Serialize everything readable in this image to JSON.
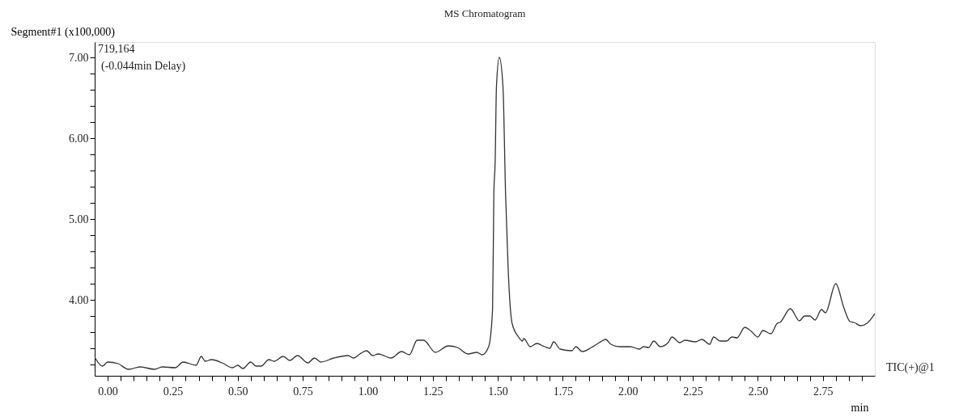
{
  "chart_data": {
    "type": "line",
    "title": "MS Chromatogram",
    "xlabel": "min",
    "ylabel": "Segment#1 (x100,000)",
    "annotations": [
      "719,164",
      "(-0.044min Delay)"
    ],
    "xlim": [
      -0.05,
      2.95
    ],
    "ylim": [
      3.06,
      7.19
    ],
    "xticks": [
      {
        "value": 0,
        "label": "0.00"
      },
      {
        "value": 0.05,
        "label": null
      },
      {
        "value": 0.1,
        "label": null
      },
      {
        "value": 0.15,
        "label": null
      },
      {
        "value": 0.2,
        "label": null
      },
      {
        "value": 0.25,
        "label": "0.25"
      },
      {
        "value": 0.3,
        "label": null
      },
      {
        "value": 0.35,
        "label": null
      },
      {
        "value": 0.4,
        "label": null
      },
      {
        "value": 0.45,
        "label": null
      },
      {
        "value": 0.5,
        "label": "0.50"
      },
      {
        "value": 0.55,
        "label": null
      },
      {
        "value": 0.6,
        "label": null
      },
      {
        "value": 0.65,
        "label": null
      },
      {
        "value": 0.7,
        "label": null
      },
      {
        "value": 0.75,
        "label": "0.75"
      },
      {
        "value": 0.8,
        "label": null
      },
      {
        "value": 0.85,
        "label": null
      },
      {
        "value": 0.9,
        "label": null
      },
      {
        "value": 0.95,
        "label": null
      },
      {
        "value": 1.0,
        "label": "1.00"
      },
      {
        "value": 1.05,
        "label": null
      },
      {
        "value": 1.1,
        "label": null
      },
      {
        "value": 1.15,
        "label": null
      },
      {
        "value": 1.2,
        "label": null
      },
      {
        "value": 1.25,
        "label": "1.25"
      },
      {
        "value": 1.3,
        "label": null
      },
      {
        "value": 1.35,
        "label": null
      },
      {
        "value": 1.4,
        "label": null
      },
      {
        "value": 1.45,
        "label": null
      },
      {
        "value": 1.5,
        "label": "1.50"
      },
      {
        "value": 1.55,
        "label": null
      },
      {
        "value": 1.6,
        "label": null
      },
      {
        "value": 1.65,
        "label": null
      },
      {
        "value": 1.7,
        "label": null
      },
      {
        "value": 1.75,
        "label": "1.75"
      },
      {
        "value": 1.8,
        "label": null
      },
      {
        "value": 1.85,
        "label": null
      },
      {
        "value": 1.9,
        "label": null
      },
      {
        "value": 1.95,
        "label": null
      },
      {
        "value": 2.0,
        "label": "2.00"
      },
      {
        "value": 2.05,
        "label": null
      },
      {
        "value": 2.1,
        "label": null
      },
      {
        "value": 2.15,
        "label": null
      },
      {
        "value": 2.2,
        "label": null
      },
      {
        "value": 2.25,
        "label": "2.25"
      },
      {
        "value": 2.3,
        "label": null
      },
      {
        "value": 2.35,
        "label": null
      },
      {
        "value": 2.4,
        "label": null
      },
      {
        "value": 2.45,
        "label": null
      },
      {
        "value": 2.5,
        "label": "2.50"
      },
      {
        "value": 2.55,
        "label": null
      },
      {
        "value": 2.6,
        "label": null
      },
      {
        "value": 2.65,
        "label": null
      },
      {
        "value": 2.7,
        "label": null
      },
      {
        "value": 2.75,
        "label": "2.75"
      },
      {
        "value": 2.8,
        "label": null
      },
      {
        "value": 2.85,
        "label": null
      },
      {
        "value": 2.9,
        "label": null
      }
    ],
    "yticks": [
      {
        "value": 3.2,
        "label": null
      },
      {
        "value": 3.4,
        "label": null
      },
      {
        "value": 3.6,
        "label": null
      },
      {
        "value": 3.8,
        "label": null
      },
      {
        "value": 4,
        "label": "4.00"
      },
      {
        "value": 4.2,
        "label": null
      },
      {
        "value": 4.4,
        "label": null
      },
      {
        "value": 4.6,
        "label": null
      },
      {
        "value": 4.8,
        "label": null
      },
      {
        "value": 5,
        "label": "5.00"
      },
      {
        "value": 5.2,
        "label": null
      },
      {
        "value": 5.4,
        "label": null
      },
      {
        "value": 5.6,
        "label": null
      },
      {
        "value": 5.8,
        "label": null
      },
      {
        "value": 6,
        "label": "6.00"
      },
      {
        "value": 6.2,
        "label": null
      },
      {
        "value": 6.4,
        "label": null
      },
      {
        "value": 6.6,
        "label": null
      },
      {
        "value": 6.8,
        "label": null
      },
      {
        "value": 7,
        "label": "7.00"
      }
    ],
    "grid": false,
    "marker": "none",
    "line_style": "solid",
    "series": [
      {
        "name": "TIC(+)@1",
        "color": "#333333",
        "x": [
          -0.05,
          -0.02,
          0.0,
          0.04,
          0.08,
          0.125,
          0.18,
          0.21,
          0.26,
          0.29,
          0.34,
          0.36,
          0.375,
          0.4,
          0.44,
          0.48,
          0.5,
          0.52,
          0.55,
          0.57,
          0.59,
          0.62,
          0.64,
          0.675,
          0.7,
          0.73,
          0.77,
          0.795,
          0.82,
          0.87,
          0.925,
          0.945,
          0.97,
          0.995,
          1.02,
          1.04,
          1.09,
          1.13,
          1.16,
          1.19,
          1.215,
          1.26,
          1.31,
          1.345,
          1.385,
          1.42,
          1.44,
          1.465,
          1.48,
          1.485,
          1.49,
          1.495,
          1.506,
          1.52,
          1.53,
          1.54,
          1.555,
          1.58,
          1.595,
          1.6,
          1.625,
          1.65,
          1.68,
          1.7,
          1.715,
          1.74,
          1.785,
          1.8,
          1.825,
          1.86,
          1.89,
          1.915,
          1.935,
          1.97,
          2.01,
          2.045,
          2.06,
          2.08,
          2.1,
          2.125,
          2.155,
          2.17,
          2.2,
          2.22,
          2.26,
          2.285,
          2.315,
          2.33,
          2.355,
          2.38,
          2.4,
          2.42,
          2.45,
          2.475,
          2.5,
          2.52,
          2.55,
          2.575,
          2.585,
          2.625,
          2.66,
          2.68,
          2.7,
          2.72,
          2.745,
          2.76,
          2.8,
          2.83,
          2.855,
          2.87,
          2.895,
          2.92,
          2.95
        ],
        "values": [
          3.29,
          3.18,
          3.23,
          3.21,
          3.14,
          3.17,
          3.14,
          3.17,
          3.16,
          3.23,
          3.19,
          3.3,
          3.24,
          3.26,
          3.22,
          3.16,
          3.19,
          3.15,
          3.23,
          3.18,
          3.18,
          3.26,
          3.24,
          3.3,
          3.25,
          3.31,
          3.22,
          3.28,
          3.23,
          3.28,
          3.31,
          3.28,
          3.33,
          3.37,
          3.31,
          3.33,
          3.28,
          3.36,
          3.32,
          3.5,
          3.5,
          3.35,
          3.43,
          3.41,
          3.33,
          3.35,
          3.32,
          3.42,
          3.88,
          5.31,
          5.71,
          6.64,
          7.0,
          6.64,
          5.31,
          4.38,
          3.71,
          3.54,
          3.49,
          3.52,
          3.42,
          3.46,
          3.42,
          3.4,
          3.48,
          3.39,
          3.37,
          3.42,
          3.36,
          3.41,
          3.47,
          3.51,
          3.45,
          3.42,
          3.42,
          3.39,
          3.42,
          3.41,
          3.49,
          3.42,
          3.47,
          3.54,
          3.47,
          3.5,
          3.48,
          3.51,
          3.45,
          3.54,
          3.49,
          3.49,
          3.54,
          3.53,
          3.66,
          3.61,
          3.54,
          3.62,
          3.58,
          3.71,
          3.72,
          3.89,
          3.74,
          3.8,
          3.8,
          3.75,
          3.88,
          3.84,
          4.2,
          3.91,
          3.73,
          3.72,
          3.68,
          3.71,
          3.83
        ]
      }
    ]
  }
}
